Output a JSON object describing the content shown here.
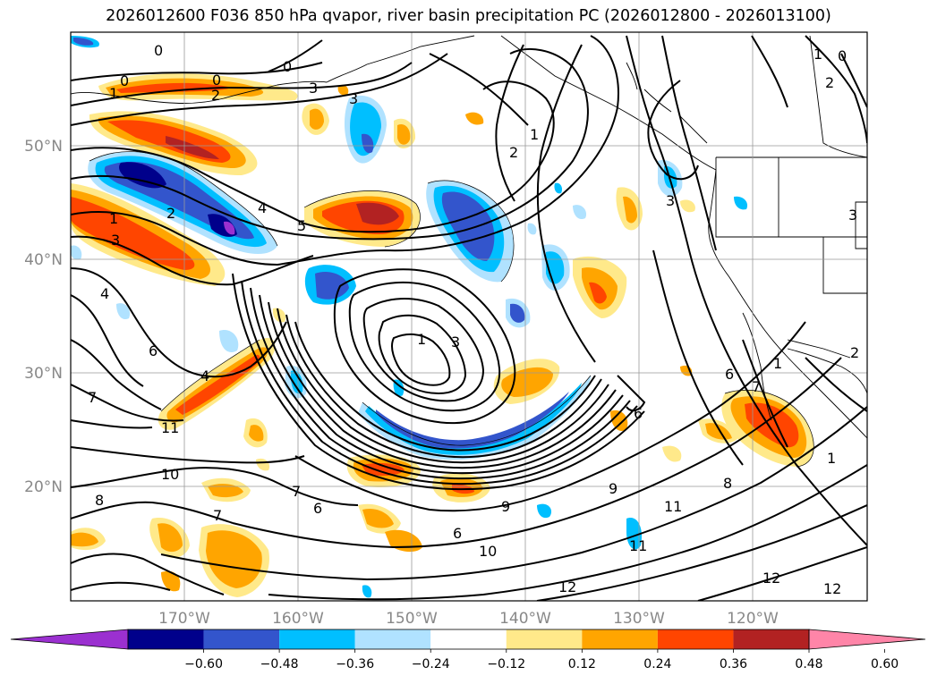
{
  "title": "2026012600 F036 850 hPa qvapor, river basin precipitation PC (2026012800 - 2026013100)",
  "lat_ticks": [
    "50°N",
    "40°N",
    "30°N",
    "20°N"
  ],
  "lon_ticks": [
    "170°W",
    "160°W",
    "150°W",
    "140°W",
    "130°W",
    "120°W"
  ],
  "colorbar": {
    "colors": [
      "#9b30d0",
      "#00008b",
      "#3355cc",
      "#00bfff",
      "#b0e2ff",
      "#ffffff",
      "#ffe98a",
      "#ffa500",
      "#ff4500",
      "#b22222",
      "#ff85a8"
    ],
    "labels": [
      "−0.60",
      "−0.48",
      "−0.36",
      "−0.24",
      "−0.12",
      "0.12",
      "0.24",
      "0.36",
      "0.48",
      "0.60"
    ]
  },
  "contour_labels": [
    "0",
    "1",
    "2",
    "0",
    "0",
    "3",
    "3",
    "2",
    "1",
    "2",
    "0",
    "3",
    "1",
    "0",
    "1",
    "2",
    "3",
    "4",
    "5",
    "4",
    "6",
    "1",
    "3",
    "4",
    "7",
    "11",
    "10",
    "8",
    "7",
    "6",
    "9",
    "11",
    "10",
    "12",
    "12",
    "11",
    "6",
    "6",
    "6",
    "7",
    "8",
    "1",
    "9",
    "12",
    "2",
    "3",
    "7",
    "1"
  ]
}
